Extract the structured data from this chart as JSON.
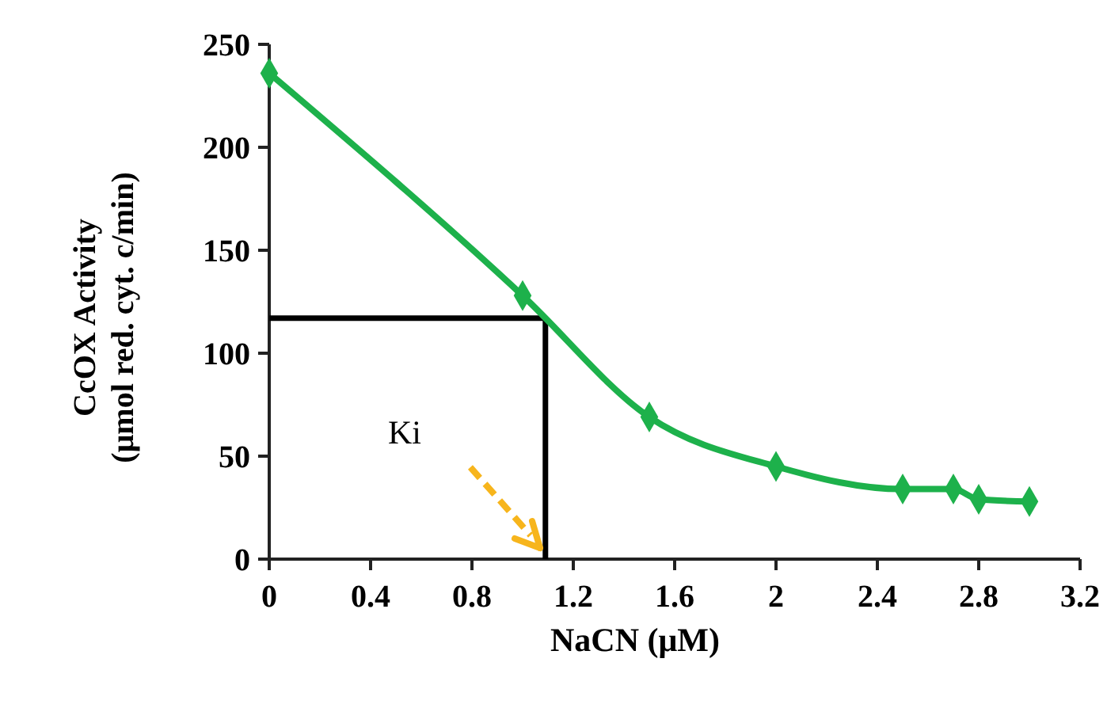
{
  "chart_data": {
    "type": "line",
    "xlabel": "NaCN (μM)",
    "ylabel": "CcOX Activity\n(μmol red. cyt. c/min)",
    "x": [
      0,
      1.0,
      1.5,
      2.0,
      2.5,
      2.7,
      2.8,
      3.0
    ],
    "series": [
      {
        "color": "#1db14b",
        "values": [
          236,
          128,
          69,
          45,
          34,
          34,
          29,
          28
        ]
      }
    ],
    "xlim": [
      0,
      3.2
    ],
    "xticks": [
      0,
      0.4,
      0.8,
      1.2,
      1.6,
      2,
      2.4,
      2.8,
      3.2
    ],
    "ylim": [
      0,
      250
    ],
    "yticks": [
      0,
      50,
      100,
      150,
      200,
      250
    ],
    "marker": "diamond",
    "line_style": "solid",
    "grid": false,
    "ref_lines": [
      {
        "axis": "y",
        "value": 117,
        "color": "#000000"
      },
      {
        "axis": "x",
        "value": 1.09,
        "color": "#000000"
      }
    ],
    "annotations": [
      "Ki"
    ]
  }
}
